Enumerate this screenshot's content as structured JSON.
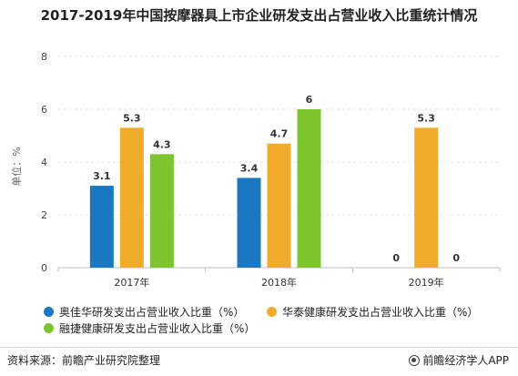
{
  "chart_data": {
    "type": "bar",
    "title": "2017-2019年中国按摩器具上市企业研发支出占营业收入比重统计情况",
    "ylabel": "单位：%",
    "xlabel": "",
    "ylim": [
      0,
      8
    ],
    "yticks": [
      0,
      2,
      4,
      6,
      8
    ],
    "categories": [
      "2017年",
      "2018年",
      "2019年"
    ],
    "series": [
      {
        "name": "奥佳华研发支出占营业收入比重（%）",
        "values": [
          3.1,
          3.4,
          0
        ],
        "labels": [
          "3.1",
          "3.4",
          "0"
        ],
        "color": "#1a78c2"
      },
      {
        "name": "华泰健康研发支出占营业收入比重（%）",
        "values": [
          5.3,
          4.7,
          5.3
        ],
        "labels": [
          "5.3",
          "4.7",
          "5.3"
        ],
        "color": "#f0ab2a"
      },
      {
        "name": "融捷健康研发支出占营业收入比重（%）",
        "values": [
          4.3,
          6,
          0
        ],
        "labels": [
          "4.3",
          "6",
          "0"
        ],
        "color": "#7cc52c"
      }
    ],
    "grid": true,
    "legend": "bottom"
  },
  "footer": {
    "source": "资料来源：前瞻产业研究院整理",
    "brand": "前瞻经济学人APP"
  }
}
